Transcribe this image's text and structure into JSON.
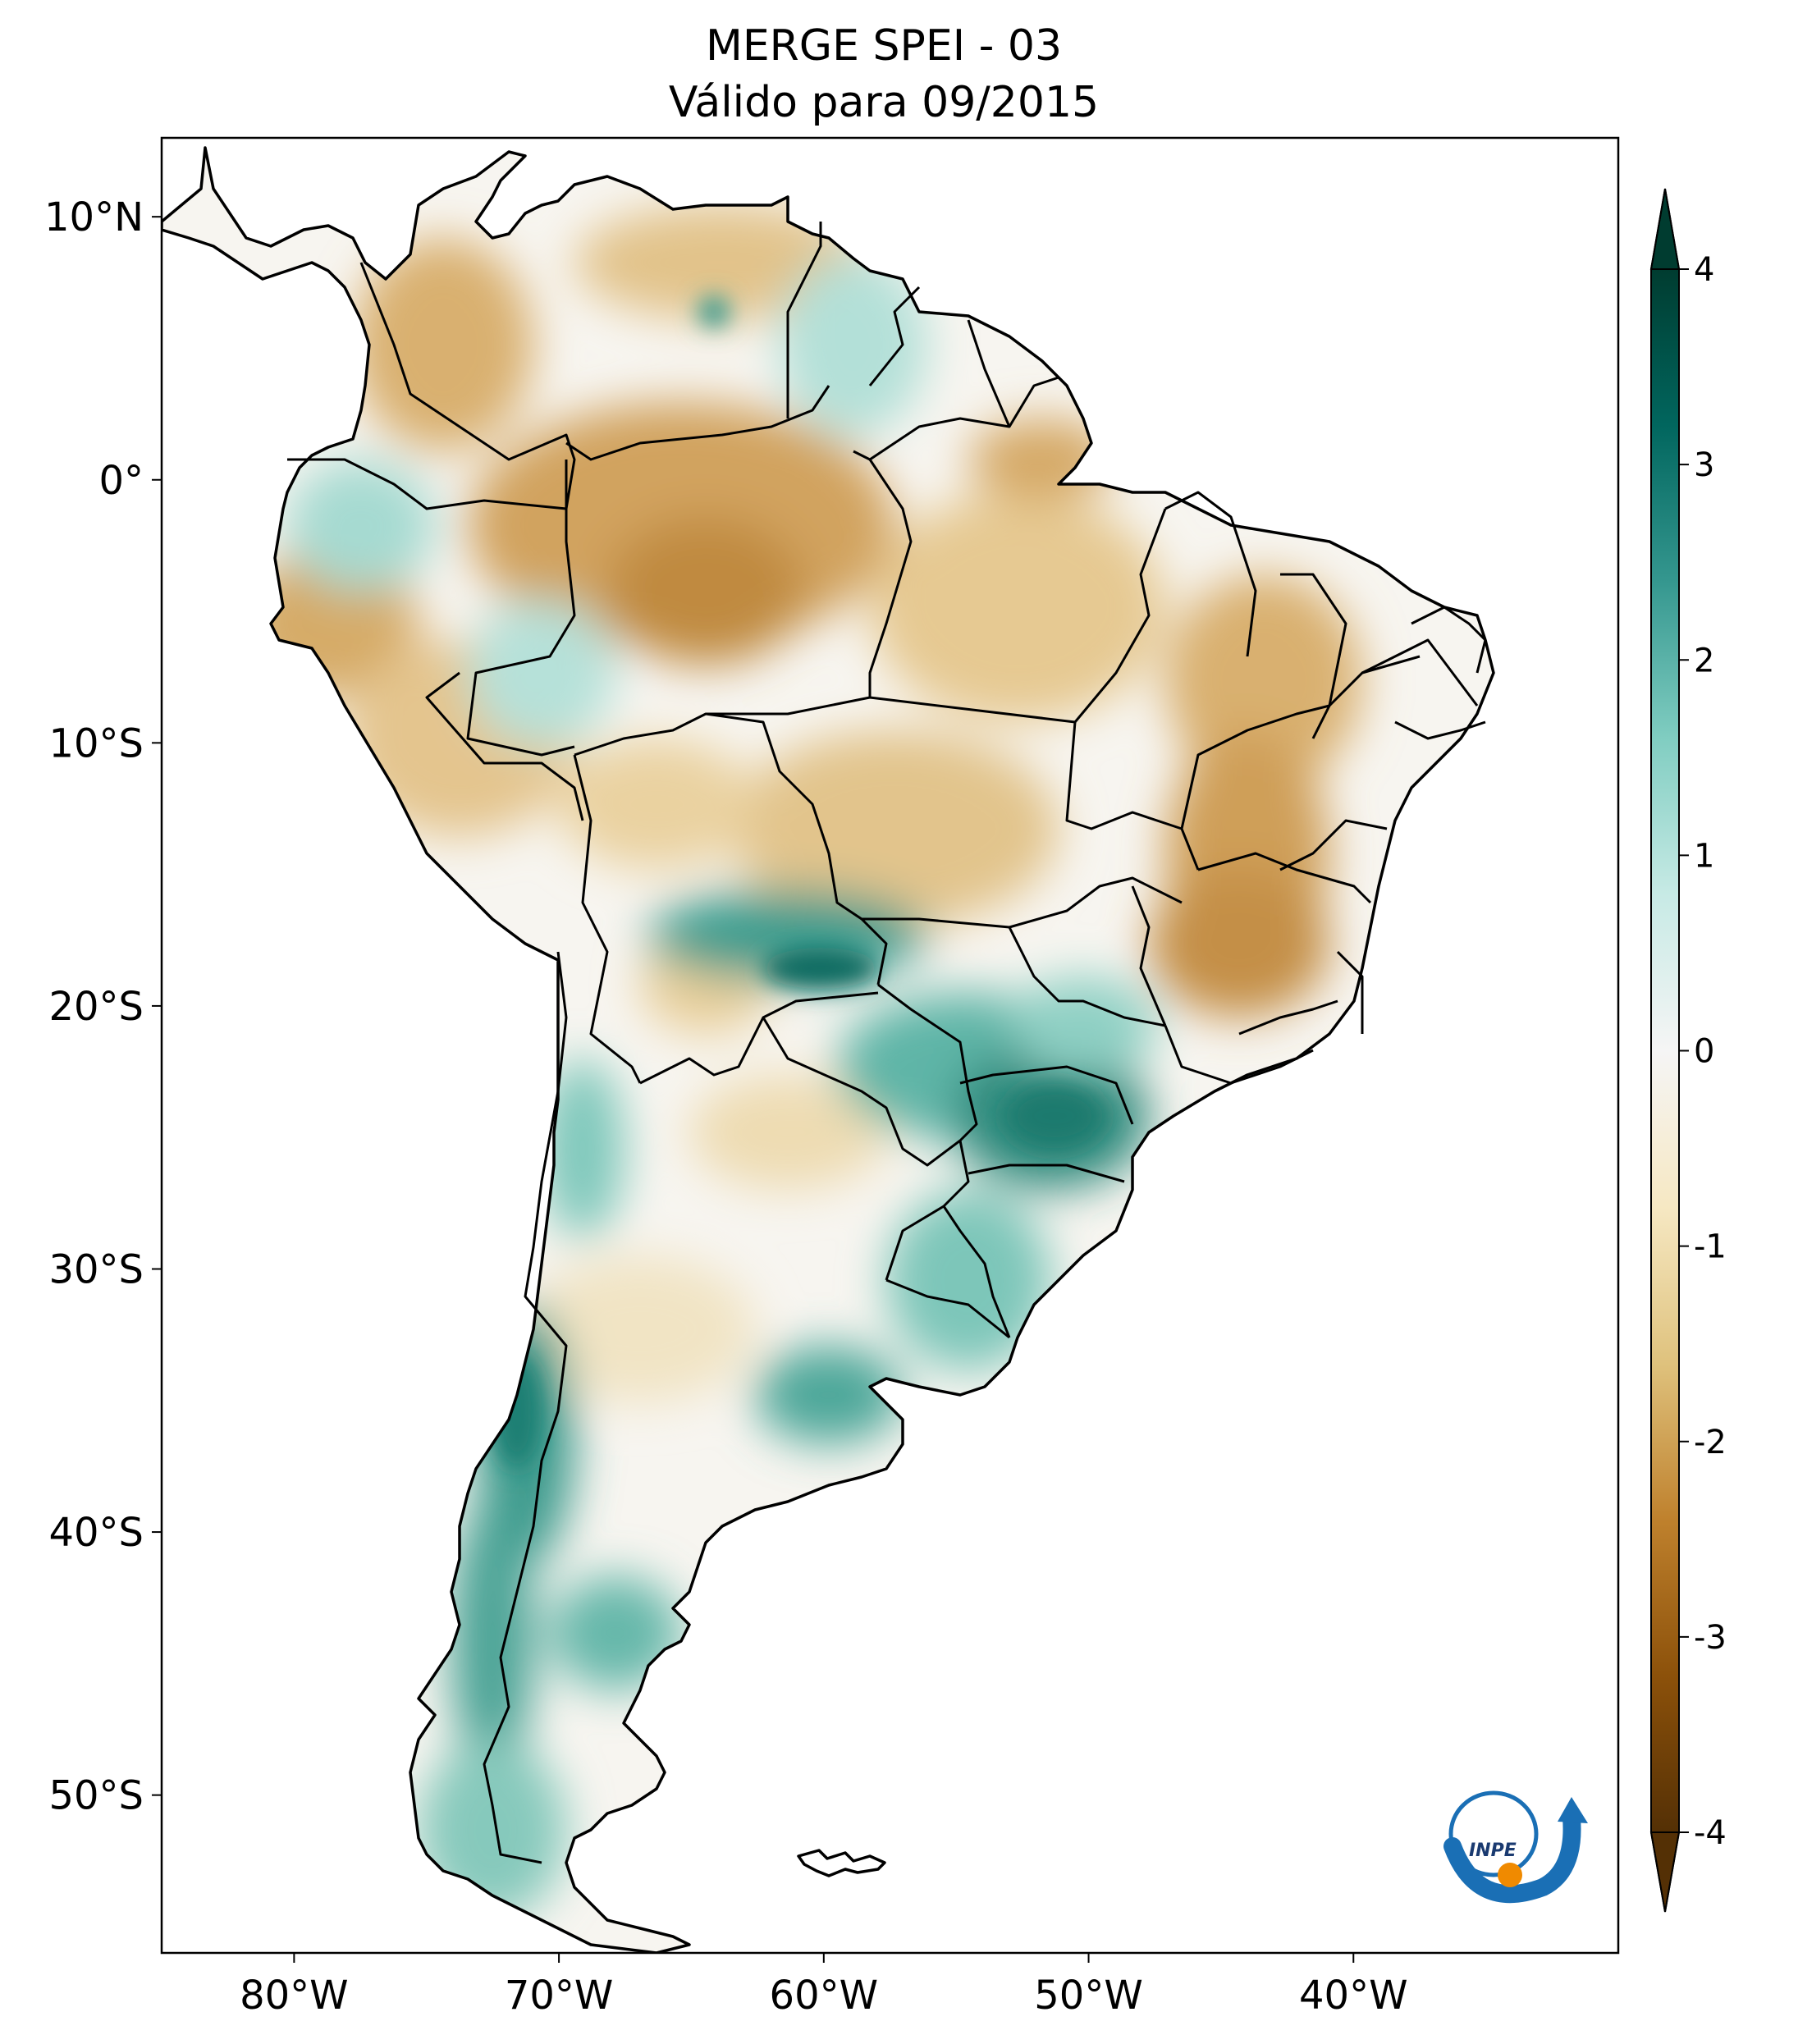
{
  "title": {
    "line1": "MERGE   SPEI - 03",
    "line2": "Válido para 09/2015"
  },
  "axes": {
    "x_ticks": [
      {
        "lon": -80,
        "label": "80°W"
      },
      {
        "lon": -70,
        "label": "70°W"
      },
      {
        "lon": -60,
        "label": "60°W"
      },
      {
        "lon": -50,
        "label": "50°W"
      },
      {
        "lon": -40,
        "label": "40°W"
      }
    ],
    "y_ticks": [
      {
        "lat": 10,
        "label": "10°N"
      },
      {
        "lat": 0,
        "label": "0°"
      },
      {
        "lat": -10,
        "label": "10°S"
      },
      {
        "lat": -20,
        "label": "20°S"
      },
      {
        "lat": -30,
        "label": "30°S"
      },
      {
        "lat": -40,
        "label": "40°S"
      },
      {
        "lat": -50,
        "label": "50°S"
      }
    ],
    "lon_range": [
      -85,
      -30
    ],
    "lat_range": [
      -56,
      13
    ]
  },
  "colorbar": {
    "min": -4,
    "max": 4,
    "ticks": [
      "4",
      "3",
      "2",
      "1",
      "0",
      "-1",
      "-2",
      "-3",
      "-4"
    ],
    "colors": [
      "#543005",
      "#8c510a",
      "#bf812d",
      "#dfc27d",
      "#f6e8c3",
      "#f5f5f5",
      "#c7eae5",
      "#80cdc1",
      "#35978f",
      "#01665e",
      "#003c30"
    ]
  },
  "logo": {
    "text": "INPE",
    "colors": {
      "blue": "#1a6fb5",
      "orange": "#f08a00"
    }
  },
  "palette": {
    "dry_light": "#ecd7a8",
    "dry_mid": "#d9b070",
    "dry_strong": "#b8823a",
    "wet_light": "#bfe4dd",
    "wet_mid": "#6fc0b3",
    "wet_strong": "#1f7f73",
    "neutral": "#f7f5f0"
  }
}
